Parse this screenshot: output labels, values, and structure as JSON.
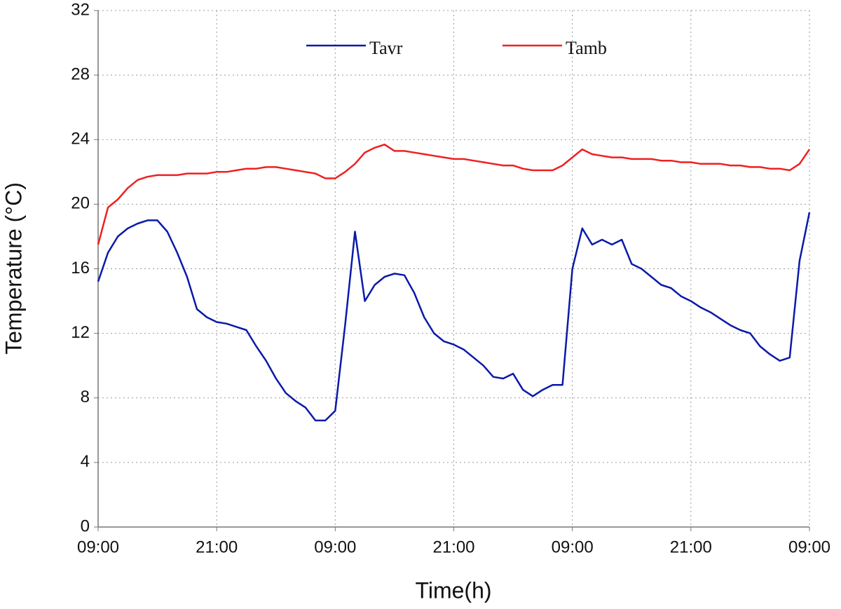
{
  "chart_data": {
    "type": "line",
    "x_label": "Time(h)",
    "y_label": "Temperature (°C)",
    "x": [
      0,
      1,
      2,
      3,
      4,
      5,
      6,
      7,
      8,
      9,
      10,
      11,
      12,
      13,
      14,
      15,
      16,
      17,
      18,
      19,
      20,
      21,
      22,
      23,
      24,
      25,
      26,
      27,
      28,
      29,
      30,
      31,
      32,
      33,
      34,
      35,
      36,
      37,
      38,
      39,
      40,
      41,
      42,
      43,
      44,
      45,
      46,
      47,
      48,
      49,
      50,
      51,
      52,
      53,
      54,
      55,
      56,
      57,
      58,
      59,
      60,
      61,
      62,
      63,
      64,
      65,
      66,
      67,
      68,
      69,
      70,
      71,
      72
    ],
    "series": [
      {
        "name": "Tavr",
        "color": "#0a1aa8",
        "values": [
          15.2,
          17,
          18,
          18.5,
          18.8,
          19,
          19,
          18.3,
          17,
          15.5,
          13.5,
          13,
          12.7,
          12.6,
          12.4,
          12.2,
          11.2,
          10.3,
          9.2,
          8.3,
          7.8,
          7.4,
          6.6,
          6.6,
          7.2,
          12.5,
          18.3,
          14,
          15,
          15.5,
          15.7,
          15.6,
          14.5,
          13,
          12,
          11.5,
          11.3,
          11,
          10.5,
          10,
          9.3,
          9.2,
          9.5,
          8.5,
          8.1,
          8.5,
          8.8,
          8.8,
          16,
          18.5,
          17.5,
          17.8,
          17.5,
          17.8,
          16.3,
          16,
          15.5,
          15,
          14.8,
          14.3,
          14,
          13.6,
          13.3,
          12.9,
          12.5,
          12.2,
          12,
          11.2,
          10.7,
          10.3,
          10.5,
          16.5,
          19.5
        ]
      },
      {
        "name": "Tamb",
        "color": "#f02020",
        "values": [
          17.5,
          19.8,
          20.3,
          21,
          21.5,
          21.7,
          21.8,
          21.8,
          21.8,
          21.9,
          21.9,
          21.9,
          22,
          22,
          22.1,
          22.2,
          22.2,
          22.3,
          22.3,
          22.2,
          22.1,
          22,
          21.9,
          21.6,
          21.6,
          22,
          22.5,
          23.2,
          23.5,
          23.7,
          23.3,
          23.3,
          23.2,
          23.1,
          23,
          22.9,
          22.8,
          22.8,
          22.7,
          22.6,
          22.5,
          22.4,
          22.4,
          22.2,
          22.1,
          22.1,
          22.1,
          22.4,
          22.9,
          23.4,
          23.1,
          23,
          22.9,
          22.9,
          22.8,
          22.8,
          22.8,
          22.7,
          22.7,
          22.6,
          22.6,
          22.5,
          22.5,
          22.5,
          22.4,
          22.4,
          22.3,
          22.3,
          22.2,
          22.2,
          22.1,
          22.5,
          23.4
        ]
      }
    ],
    "xlim": [
      0,
      72
    ],
    "xticks": [
      {
        "value": 0,
        "label": "09:00"
      },
      {
        "value": 12,
        "label": "21:00"
      },
      {
        "value": 24,
        "label": "09:00"
      },
      {
        "value": 36,
        "label": "21:00"
      },
      {
        "value": 48,
        "label": "09:00"
      },
      {
        "value": 60,
        "label": "21:00"
      },
      {
        "value": 72,
        "label": "09:00"
      }
    ],
    "ylim": [
      0,
      32
    ],
    "yticks": [
      0,
      4,
      8,
      12,
      16,
      20,
      24,
      28,
      32
    ],
    "grid": true,
    "legend": "top"
  }
}
